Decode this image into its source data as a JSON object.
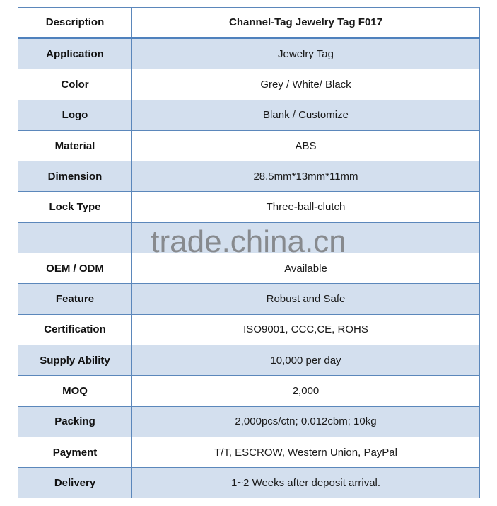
{
  "header": {
    "label": "Description",
    "value": "Channel-Tag Jewelry Tag F017"
  },
  "rows": [
    {
      "label": "Application",
      "value": "Jewelry Tag"
    },
    {
      "label": "Color",
      "value": "Grey / White/ Black"
    },
    {
      "label": "Logo",
      "value": "Blank / Customize"
    },
    {
      "label": "Material",
      "value": "ABS"
    },
    {
      "label": "Dimension",
      "value": "28.5mm*13mm*11mm"
    },
    {
      "label": "Lock Type",
      "value": "Three-ball-clutch"
    },
    {
      "label": "",
      "value": ""
    },
    {
      "label": "OEM / ODM",
      "value": "Available"
    },
    {
      "label": "Feature",
      "value": "Robust and Safe"
    },
    {
      "label": "Certification",
      "value": "ISO9001, CCC,CE, ROHS"
    },
    {
      "label": "Supply Ability",
      "value": "10,000 per day"
    },
    {
      "label": "MOQ",
      "value": "2,000"
    },
    {
      "label": "Packing",
      "value": "2,000pcs/ctn; 0.012cbm; 10kg"
    },
    {
      "label": "Payment",
      "value": "T/T, ESCROW, Western Union, PayPal"
    },
    {
      "label": "Delivery",
      "value": "1~2 Weeks after deposit arrival."
    }
  ],
  "watermark": "trade.china.cn",
  "colors": {
    "shade": "#d3dfee",
    "border": "#4f81bd"
  }
}
